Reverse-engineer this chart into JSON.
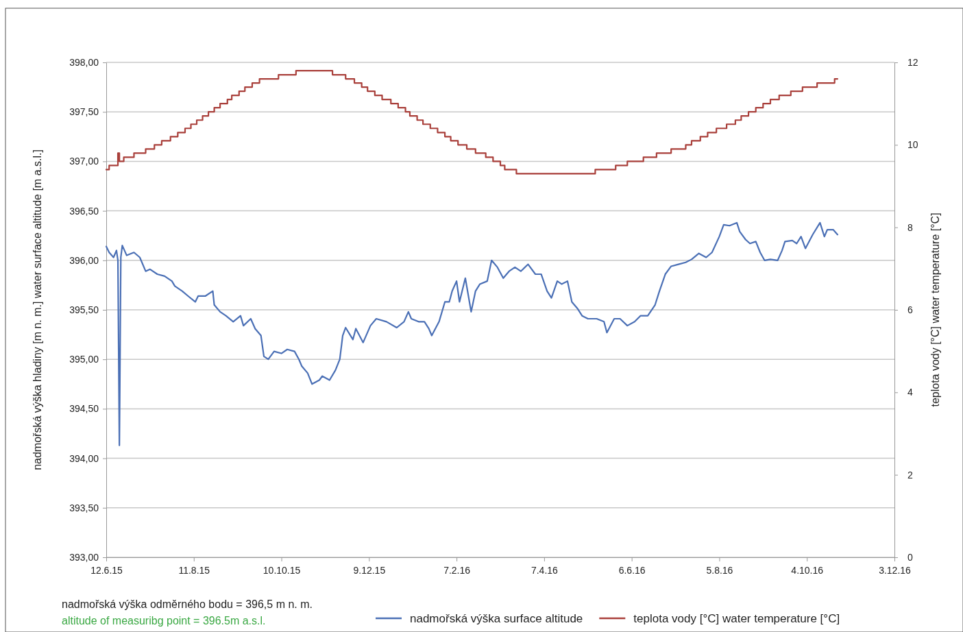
{
  "chart_data": {
    "type": "line",
    "xlabel": null,
    "ylabel": "nadmořská výška hladiny [m n. m.]  water surface altitude [m a.s.l.]",
    "y2label": "teplota vody [°C]  water temperature [°C]",
    "xlim": [
      "2015-06-12",
      "2016-12-03"
    ],
    "xticks": [
      {
        "value": "2015-06-12",
        "label": "12.6.15"
      },
      {
        "value": "2015-08-11",
        "label": "11.8.15"
      },
      {
        "value": "2015-10-10",
        "label": "10.10.15"
      },
      {
        "value": "2015-12-09",
        "label": "9.12.15"
      },
      {
        "value": "2016-02-07",
        "label": "7.2.16"
      },
      {
        "value": "2016-04-07",
        "label": "7.4.16"
      },
      {
        "value": "2016-06-06",
        "label": "6.6.16"
      },
      {
        "value": "2016-08-05",
        "label": "5.8.16"
      },
      {
        "value": "2016-10-04",
        "label": "4.10.16"
      },
      {
        "value": "2016-12-03",
        "label": "3.12.16"
      }
    ],
    "ylim": [
      393,
      398
    ],
    "yticks": [
      {
        "value": 393,
        "label": "393,00"
      },
      {
        "value": 393.5,
        "label": "393,50"
      },
      {
        "value": 394,
        "label": "394,00"
      },
      {
        "value": 394.5,
        "label": "394,50"
      },
      {
        "value": 395,
        "label": "395,00"
      },
      {
        "value": 395.5,
        "label": "395,50"
      },
      {
        "value": 396,
        "label": "396,00"
      },
      {
        "value": 396.5,
        "label": "396,50"
      },
      {
        "value": 397,
        "label": "397,00"
      },
      {
        "value": 397.5,
        "label": "397,50"
      },
      {
        "value": 398,
        "label": "398,00"
      }
    ],
    "y2lim": [
      0,
      12
    ],
    "y2ticks": [
      0,
      2,
      4,
      6,
      8,
      10,
      12
    ],
    "grid": "y",
    "legend": "bottom",
    "series": [
      {
        "name": "nadmořská výška  surface altitude",
        "color": "#4a6fb5",
        "x": [
          "2015-06-12",
          "2015-06-14",
          "2015-06-17",
          "2015-06-19",
          "2015-06-20",
          "2015-06-21",
          "2015-06-22",
          "2015-06-23",
          "2015-06-26",
          "2015-07-01",
          "2015-07-05",
          "2015-07-09",
          "2015-07-12",
          "2015-07-17",
          "2015-07-22",
          "2015-07-27",
          "2015-07-29",
          "2015-08-03",
          "2015-08-07",
          "2015-08-12",
          "2015-08-14",
          "2015-08-19",
          "2015-08-24",
          "2015-08-25",
          "2015-08-29",
          "2015-09-02",
          "2015-09-07",
          "2015-09-12",
          "2015-09-14",
          "2015-09-19",
          "2015-09-22",
          "2015-09-26",
          "2015-09-28",
          "2015-10-01",
          "2015-10-05",
          "2015-10-10",
          "2015-10-14",
          "2015-10-19",
          "2015-10-22",
          "2015-10-24",
          "2015-10-28",
          "2015-10-31",
          "2015-11-05",
          "2015-11-07",
          "2015-11-12",
          "2015-11-16",
          "2015-11-19",
          "2015-11-21",
          "2015-11-23",
          "2015-11-28",
          "2015-11-30",
          "2015-12-05",
          "2015-12-10",
          "2015-12-14",
          "2015-12-21",
          "2015-12-28",
          "2016-01-02",
          "2016-01-05",
          "2016-01-07",
          "2016-01-12",
          "2016-01-16",
          "2016-01-19",
          "2016-01-21",
          "2016-01-26",
          "2016-01-30",
          "2016-02-02",
          "2016-02-04",
          "2016-02-07",
          "2016-02-09",
          "2016-02-13",
          "2016-02-17",
          "2016-02-20",
          "2016-02-23",
          "2016-02-28",
          "2016-03-02",
          "2016-03-06",
          "2016-03-10",
          "2016-03-14",
          "2016-03-18",
          "2016-03-22",
          "2016-03-27",
          "2016-04-01",
          "2016-04-05",
          "2016-04-09",
          "2016-04-12",
          "2016-04-16",
          "2016-04-19",
          "2016-04-23",
          "2016-04-26",
          "2016-04-30",
          "2016-05-03",
          "2016-05-07",
          "2016-05-13",
          "2016-05-18",
          "2016-05-20",
          "2016-05-25",
          "2016-05-29",
          "2016-06-03",
          "2016-06-08",
          "2016-06-12",
          "2016-06-17",
          "2016-06-22",
          "2016-06-25",
          "2016-06-29",
          "2016-07-03",
          "2016-07-08",
          "2016-07-13",
          "2016-07-17",
          "2016-07-22",
          "2016-07-27",
          "2016-07-31",
          "2016-08-05",
          "2016-08-08",
          "2016-08-12",
          "2016-08-17",
          "2016-08-19",
          "2016-08-23",
          "2016-08-26",
          "2016-08-30",
          "2016-09-02",
          "2016-09-05",
          "2016-09-09",
          "2016-09-14",
          "2016-09-17",
          "2016-09-19",
          "2016-09-24",
          "2016-09-27",
          "2016-09-30",
          "2016-10-03",
          "2016-10-08",
          "2016-10-13",
          "2016-10-16",
          "2016-10-18",
          "2016-10-22",
          "2016-10-25"
        ],
        "values": [
          396.14,
          396.08,
          396.03,
          396.1,
          396.0,
          394.13,
          396.03,
          396.15,
          396.05,
          396.08,
          396.03,
          395.89,
          395.91,
          395.86,
          395.84,
          395.79,
          395.74,
          395.69,
          395.64,
          395.58,
          395.64,
          395.64,
          395.69,
          395.55,
          395.48,
          395.44,
          395.38,
          395.44,
          395.34,
          395.41,
          395.31,
          395.24,
          395.03,
          395.0,
          395.08,
          395.06,
          395.1,
          395.08,
          395.0,
          394.93,
          394.86,
          394.75,
          394.79,
          394.83,
          394.79,
          394.89,
          395.0,
          395.24,
          395.32,
          395.2,
          395.31,
          395.17,
          395.34,
          395.41,
          395.38,
          395.32,
          395.38,
          395.48,
          395.41,
          395.38,
          395.38,
          395.31,
          395.24,
          395.38,
          395.58,
          395.58,
          395.69,
          395.79,
          395.58,
          395.82,
          395.48,
          395.69,
          395.76,
          395.79,
          396.0,
          395.93,
          395.82,
          395.89,
          395.93,
          395.89,
          395.96,
          395.86,
          395.86,
          395.69,
          395.62,
          395.79,
          395.76,
          395.79,
          395.58,
          395.51,
          395.44,
          395.41,
          395.41,
          395.38,
          395.27,
          395.41,
          395.41,
          395.34,
          395.38,
          395.44,
          395.44,
          395.55,
          395.69,
          395.86,
          395.94,
          395.96,
          395.98,
          396.01,
          396.07,
          396.03,
          396.08,
          396.24,
          396.36,
          396.35,
          396.38,
          396.29,
          396.21,
          396.17,
          396.19,
          396.08,
          396.0,
          396.01,
          396.0,
          396.1,
          396.19,
          396.2,
          396.17,
          396.24,
          396.12,
          396.26,
          396.38,
          396.24,
          396.31,
          396.31,
          396.26
        ]
      },
      {
        "name": "teplota vody [°C]  water temperature [°C]",
        "color": "#a93f3a",
        "type": "step",
        "axis": "y2",
        "x": [
          "2015-06-12",
          "2015-06-14",
          "2015-06-20",
          "2015-06-21",
          "2015-06-24",
          "2015-07-01",
          "2015-07-09",
          "2015-07-15",
          "2015-07-20",
          "2015-07-26",
          "2015-07-31",
          "2015-08-05",
          "2015-08-09",
          "2015-08-13",
          "2015-08-17",
          "2015-08-21",
          "2015-08-25",
          "2015-08-29",
          "2015-09-03",
          "2015-09-06",
          "2015-09-11",
          "2015-09-15",
          "2015-09-20",
          "2015-09-25",
          "2015-10-08",
          "2015-10-20",
          "2015-11-14",
          "2015-11-23",
          "2015-11-29",
          "2015-12-04",
          "2015-12-08",
          "2015-12-13",
          "2015-12-18",
          "2015-12-24",
          "2015-12-29",
          "2016-01-03",
          "2016-01-06",
          "2016-01-11",
          "2016-01-15",
          "2016-01-20",
          "2016-01-25",
          "2016-01-30",
          "2016-02-03",
          "2016-02-08",
          "2016-02-14",
          "2016-02-20",
          "2016-02-27",
          "2016-03-03",
          "2016-03-08",
          "2016-03-11",
          "2016-03-19",
          "2016-05-12",
          "2016-05-26",
          "2016-06-03",
          "2016-06-14",
          "2016-06-23",
          "2016-07-03",
          "2016-07-13",
          "2016-07-17",
          "2016-07-23",
          "2016-07-28",
          "2016-08-03",
          "2016-08-10",
          "2016-08-16",
          "2016-08-20",
          "2016-08-25",
          "2016-08-30",
          "2016-09-04",
          "2016-09-09",
          "2016-09-15",
          "2016-09-23",
          "2016-10-01",
          "2016-10-11",
          "2016-10-23",
          "2016-10-25"
        ],
        "values": [
          9.4,
          9.5,
          9.8,
          9.6,
          9.7,
          9.8,
          9.9,
          10.0,
          10.1,
          10.2,
          10.3,
          10.4,
          10.5,
          10.6,
          10.7,
          10.8,
          10.9,
          11.0,
          11.1,
          11.2,
          11.3,
          11.4,
          11.5,
          11.6,
          11.7,
          11.8,
          11.7,
          11.6,
          11.5,
          11.4,
          11.3,
          11.2,
          11.1,
          11.0,
          10.9,
          10.8,
          10.7,
          10.6,
          10.5,
          10.4,
          10.3,
          10.2,
          10.1,
          10.0,
          9.9,
          9.8,
          9.7,
          9.6,
          9.5,
          9.4,
          9.3,
          9.4,
          9.5,
          9.6,
          9.7,
          9.8,
          9.9,
          10.0,
          10.1,
          10.2,
          10.3,
          10.4,
          10.5,
          10.6,
          10.7,
          10.8,
          10.9,
          11.0,
          11.1,
          11.2,
          11.3,
          11.4,
          11.5,
          11.6,
          11.6
        ]
      }
    ],
    "annotations": [
      "nadmořská výška odměrného bodu = 396,5 m n. m.",
      "altitude of measuribg point = 396.5m a.s.l."
    ]
  }
}
